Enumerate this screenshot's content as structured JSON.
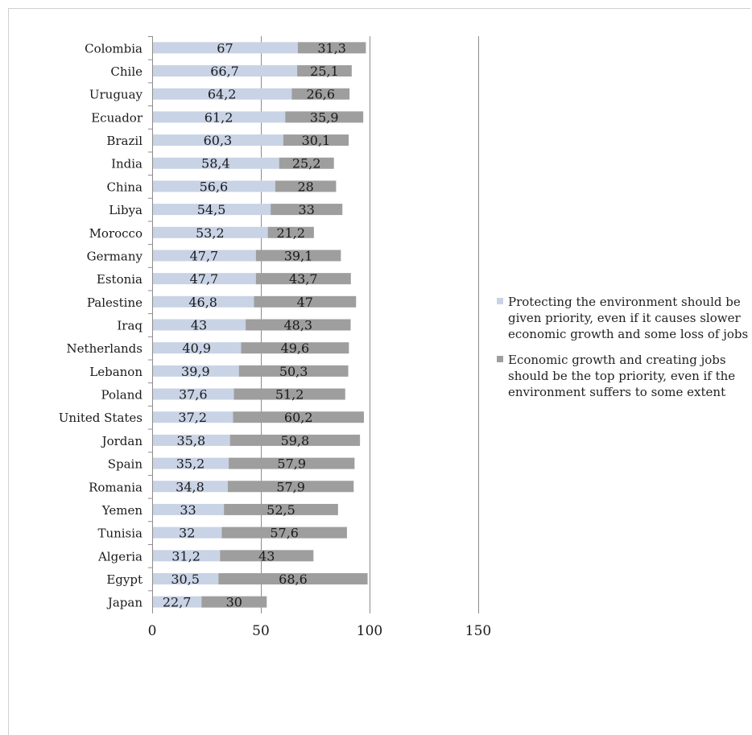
{
  "chart_data": {
    "type": "bar",
    "orientation": "horizontal",
    "stacked": true,
    "categories": [
      "Colombia",
      "Chile",
      "Uruguay",
      "Ecuador",
      "Brazil",
      "India",
      "China",
      "Libya",
      "Morocco",
      "Germany",
      "Estonia",
      "Palestine",
      "Iraq",
      "Netherlands",
      "Lebanon",
      "Poland",
      "United States",
      "Jordan",
      "Spain",
      "Romania",
      "Yemen",
      "Tunisia",
      "Algeria",
      "Egypt",
      "Japan"
    ],
    "series": [
      {
        "name": "Protecting the environment should be given priority, even if it causes slower economic growth and some loss of jobs",
        "color": "#c9d3e6",
        "values": [
          67,
          66.7,
          64.2,
          61.2,
          60.3,
          58.4,
          56.6,
          54.5,
          53.2,
          47.7,
          47.7,
          46.8,
          43,
          40.9,
          39.9,
          37.6,
          37.2,
          35.8,
          35.2,
          34.8,
          33,
          32,
          31.2,
          30.5,
          22.7
        ],
        "labels": [
          "67",
          "66,7",
          "64,2",
          "61,2",
          "60,3",
          "58,4",
          "56,6",
          "54,5",
          "53,2",
          "47,7",
          "47,7",
          "46,8",
          "43",
          "40,9",
          "39,9",
          "37,6",
          "37,2",
          "35,8",
          "35,2",
          "34,8",
          "33",
          "32",
          "31,2",
          "30,5",
          "22,7"
        ]
      },
      {
        "name": "Economic growth and creating jobs should be the top priority, even if the environment suffers to some extent",
        "color": "#9e9e9e",
        "values": [
          31.3,
          25.1,
          26.6,
          35.9,
          30.1,
          25.2,
          28,
          33,
          21.2,
          39.1,
          43.7,
          47,
          48.3,
          49.6,
          50.3,
          51.2,
          60.2,
          59.8,
          57.9,
          57.9,
          52.5,
          57.6,
          43,
          68.6,
          30
        ],
        "labels": [
          "31,3",
          "25,1",
          "26,6",
          "35,9",
          "30,1",
          "25,2",
          "28",
          "33",
          "21,2",
          "39,1",
          "43,7",
          "47",
          "48,3",
          "49,6",
          "50,3",
          "51,2",
          "60,2",
          "59,8",
          "57,9",
          "57,9",
          "52,5",
          "57,6",
          "43",
          "68,6",
          "30"
        ]
      }
    ],
    "xlim": [
      0,
      150
    ],
    "xticks": [
      0,
      50,
      100,
      150
    ],
    "xtick_labels": [
      "0",
      "50",
      "100",
      "150"
    ],
    "grid": "vertical",
    "legend": "right",
    "title": "",
    "xlabel": "",
    "ylabel": ""
  }
}
